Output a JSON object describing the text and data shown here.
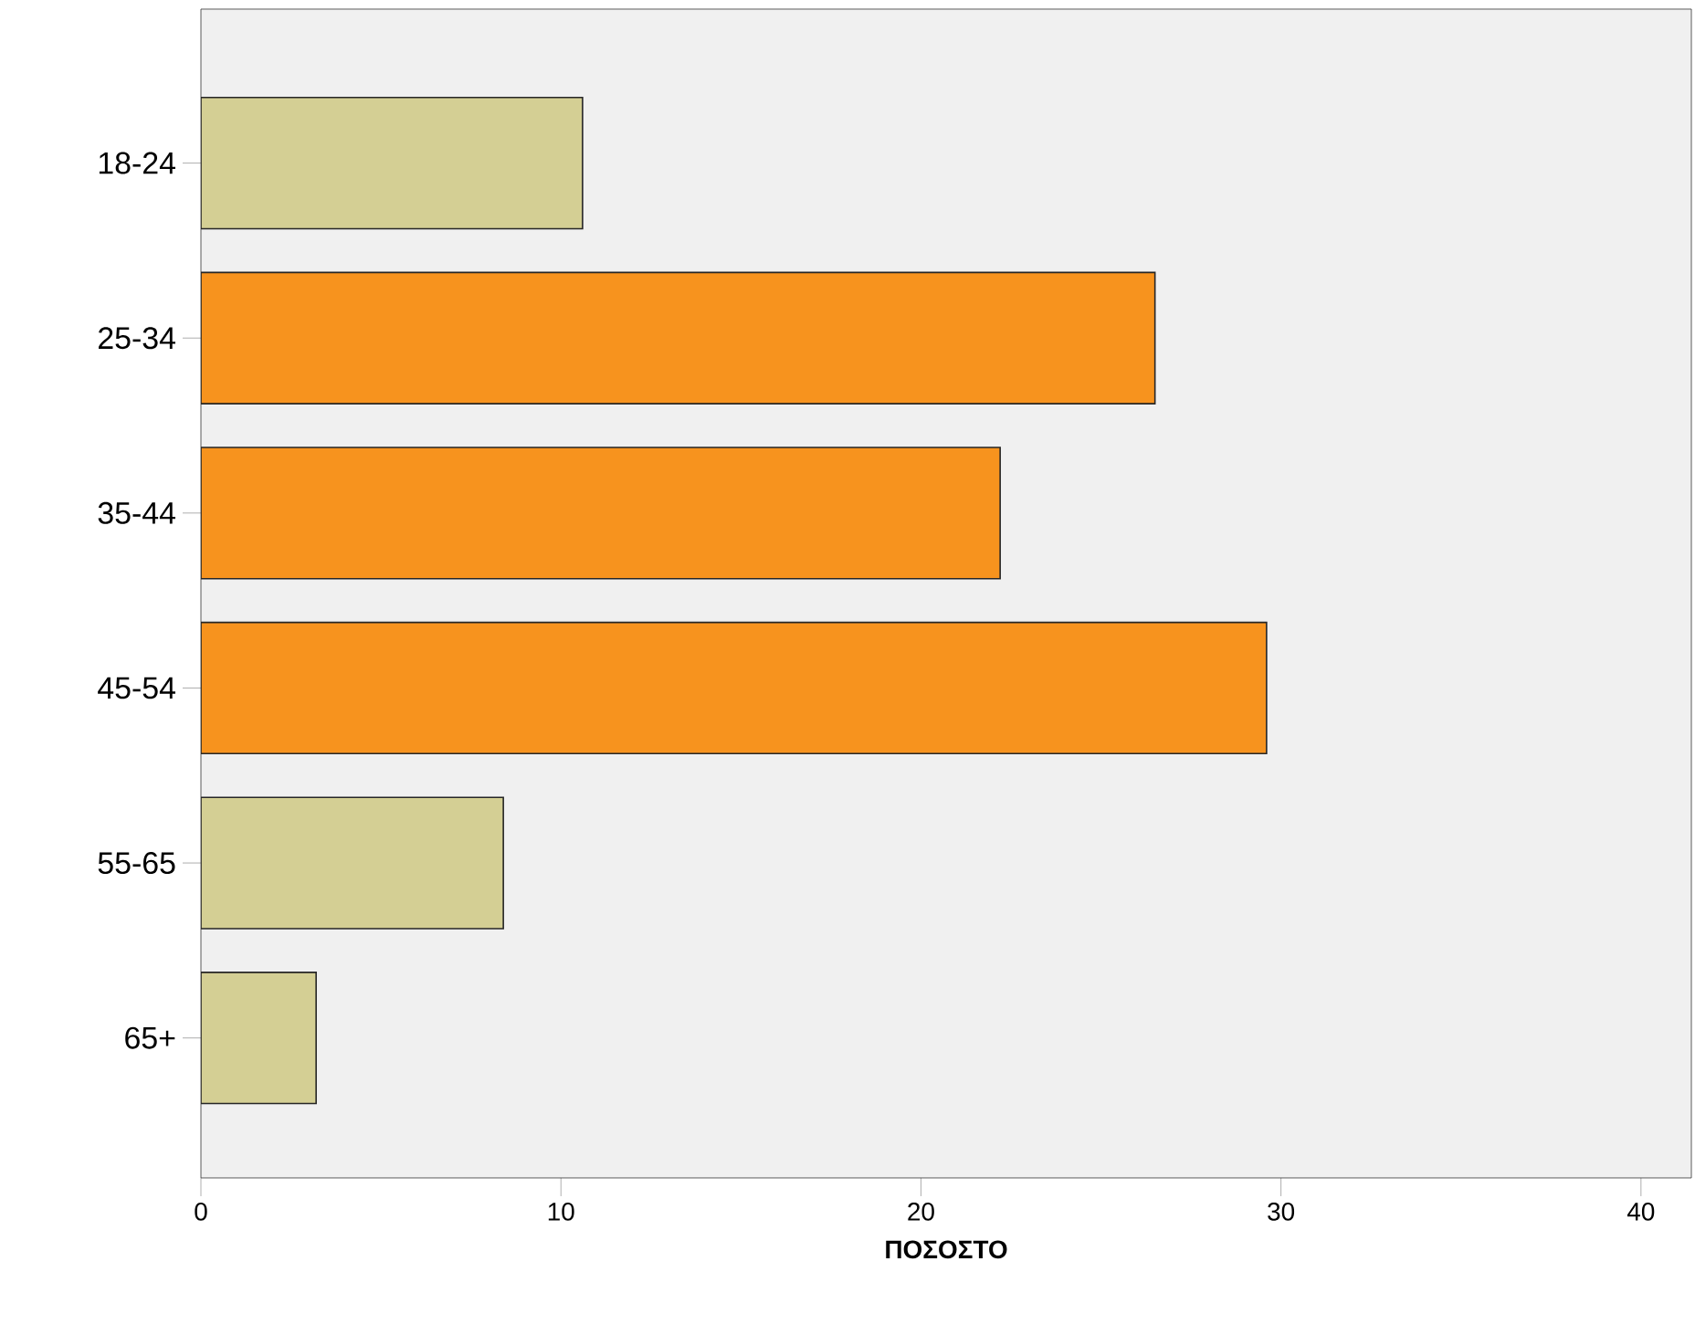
{
  "chart_data": {
    "type": "bar",
    "orientation": "horizontal",
    "xlabel": "ΠΟΣΟΣΤΟ",
    "categories": [
      "18-24",
      "25-34",
      "35-44",
      "45-54",
      "55-65",
      "65+"
    ],
    "values": [
      10.6,
      26.5,
      22.2,
      29.6,
      8.4,
      3.2
    ],
    "colors": [
      "#d4cf94",
      "#f7931e",
      "#f7931e",
      "#f7931e",
      "#d4cf94",
      "#d4cf94"
    ],
    "xlim": [
      0,
      41.4
    ],
    "xticks": [
      0,
      10,
      20,
      30,
      40
    ],
    "grid": false
  }
}
